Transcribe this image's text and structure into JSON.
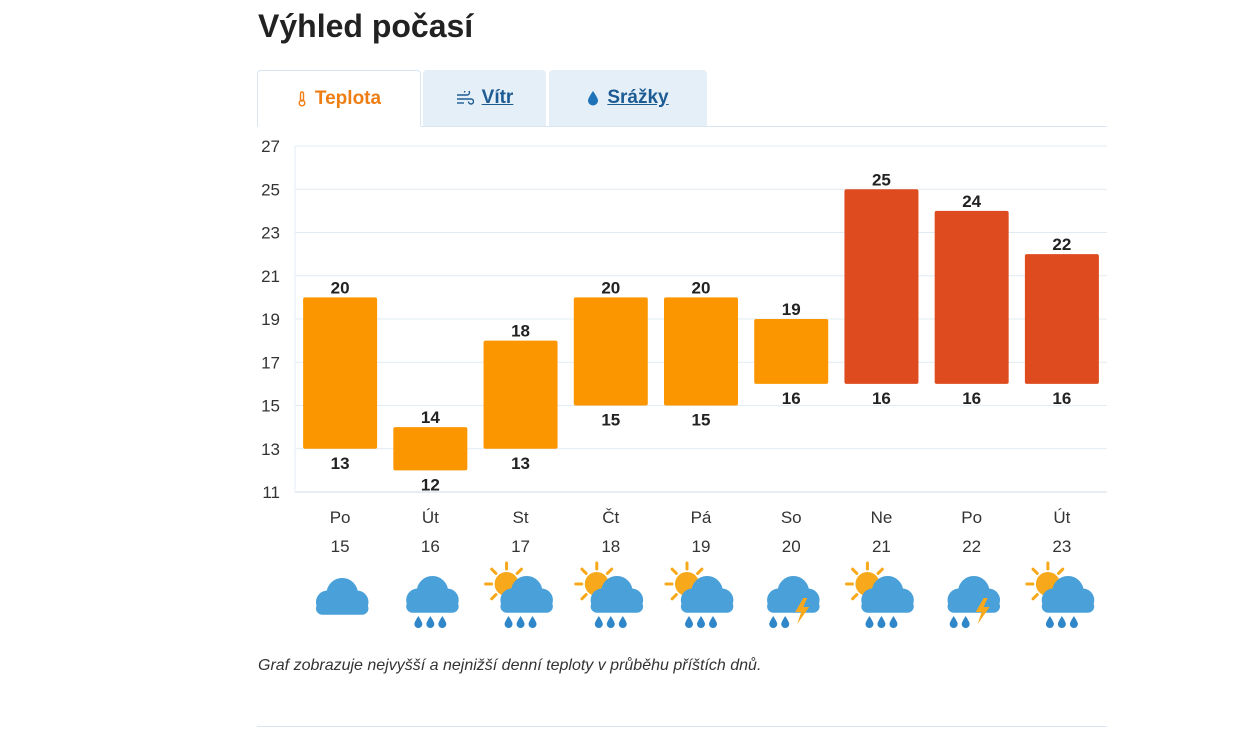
{
  "title": "Výhled počasí",
  "tabs": [
    {
      "label": "Teplota",
      "icon": "thermometer-icon",
      "active": true
    },
    {
      "label": "Vítr",
      "icon": "wind-icon",
      "active": false
    },
    {
      "label": "Srážky",
      "icon": "droplet-icon",
      "active": false
    }
  ],
  "colors": {
    "accent": "#ee7d13",
    "link": "#1d5b93",
    "tab_bg": "#e4eff8",
    "bar_warm": "#fb9600",
    "bar_hot": "#dd4b1e",
    "grid": "#e1ebf2",
    "cloud": "#4aa0d8",
    "sun": "#f7a81b",
    "drop": "#2f86c8"
  },
  "chart_data": {
    "type": "bar",
    "subtype": "floating-range",
    "ylim": [
      11,
      27
    ],
    "yticks": [
      "27",
      "25",
      "23",
      "21",
      "19",
      "17",
      "15",
      "13",
      "11"
    ],
    "grid": true,
    "days": [
      {
        "day": "Po",
        "date": "15",
        "max": 20,
        "min": 13,
        "color": "bar_warm",
        "icon": "cloud"
      },
      {
        "day": "Út",
        "date": "16",
        "max": 14,
        "min": 12,
        "color": "bar_warm",
        "icon": "cloud-rain"
      },
      {
        "day": "St",
        "date": "17",
        "max": 18,
        "min": 13,
        "color": "bar_warm",
        "icon": "sun-cloud-rain"
      },
      {
        "day": "Čt",
        "date": "18",
        "max": 20,
        "min": 15,
        "color": "bar_warm",
        "icon": "sun-cloud-rain"
      },
      {
        "day": "Pá",
        "date": "19",
        "max": 20,
        "min": 15,
        "color": "bar_warm",
        "icon": "sun-cloud-rain"
      },
      {
        "day": "So",
        "date": "20",
        "max": 19,
        "min": 16,
        "color": "bar_warm",
        "icon": "cloud-storm"
      },
      {
        "day": "Ne",
        "date": "21",
        "max": 25,
        "min": 16,
        "color": "bar_hot",
        "icon": "sun-cloud-rain"
      },
      {
        "day": "Po",
        "date": "22",
        "max": 24,
        "min": 16,
        "color": "bar_hot",
        "icon": "cloud-storm"
      },
      {
        "day": "Út",
        "date": "23",
        "max": 22,
        "min": 16,
        "color": "bar_hot",
        "icon": "sun-cloud-rain"
      }
    ]
  },
  "caption": "Graf zobrazuje nejvyšší a nejnižší denní teploty v průběhu příštích dnů."
}
